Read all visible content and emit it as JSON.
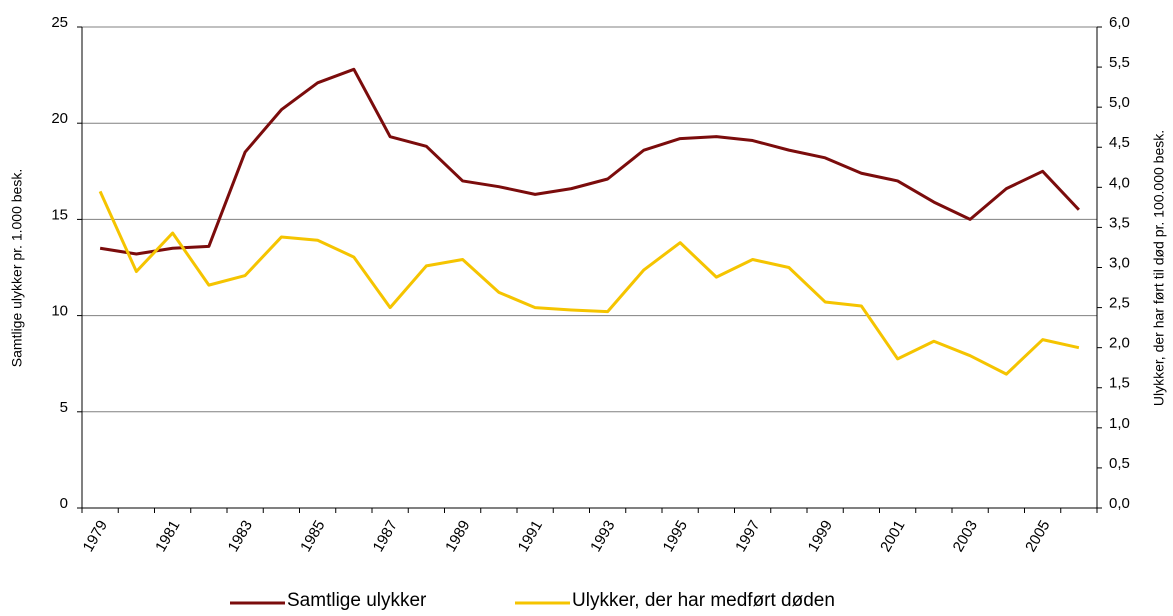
{
  "chart_data": {
    "type": "line",
    "y_label": "Samtlige ulykker pr. 1.000 besk.",
    "y2_label": "Ulykker, der har ført til død pr. 100.000 besk.",
    "categories": [
      "1979",
      null,
      "1981",
      null,
      "1983",
      null,
      "1985",
      null,
      "1987",
      null,
      "1989",
      null,
      "1991",
      null,
      "1993",
      null,
      "1995",
      null,
      "1997",
      null,
      "1999",
      null,
      "2001",
      null,
      "2003",
      null,
      "2005",
      null
    ],
    "series": [
      {
        "name": "Samtlige ulykker",
        "color": "#7b0c0c",
        "axis": "y",
        "values": [
          13.5,
          13.2,
          13.5,
          13.6,
          18.5,
          20.7,
          22.1,
          22.8,
          19.3,
          18.8,
          17.0,
          16.7,
          16.3,
          16.6,
          17.1,
          18.6,
          19.2,
          19.3,
          19.1,
          18.6,
          18.2,
          17.4,
          17.0,
          15.9,
          15.0,
          16.6,
          17.5,
          15.5
        ]
      },
      {
        "name": "Ulykker, der har medført døden",
        "color": "#f5c400",
        "axis": "y2",
        "values": [
          3.95,
          2.95,
          3.43,
          2.78,
          2.9,
          3.38,
          3.34,
          3.13,
          2.5,
          3.02,
          3.1,
          2.69,
          2.5,
          2.47,
          2.45,
          2.97,
          3.31,
          2.88,
          3.1,
          3.0,
          2.57,
          2.52,
          1.86,
          2.08,
          1.9,
          1.67,
          2.1,
          2.0
        ]
      }
    ],
    "ylim": [
      0,
      25
    ],
    "yticks": [
      0,
      5,
      10,
      15,
      20,
      25
    ],
    "y2lim": [
      0,
      6
    ],
    "y2ticks": [
      {
        "value": 0,
        "label": "0,0"
      },
      {
        "value": 0.5,
        "label": "0,5"
      },
      {
        "value": 1,
        "label": "1,0"
      },
      {
        "value": 1.5,
        "label": "1,5"
      },
      {
        "value": 2,
        "label": "2,0"
      },
      {
        "value": 2.5,
        "label": "2,5"
      },
      {
        "value": 3,
        "label": "3,0"
      },
      {
        "value": 3.5,
        "label": "3,5"
      },
      {
        "value": 4,
        "label": "4,0"
      },
      {
        "value": 4.5,
        "label": "4,5"
      },
      {
        "value": 5,
        "label": "5,0"
      },
      {
        "value": 5.5,
        "label": "5,5"
      },
      {
        "value": 6,
        "label": "6,0"
      }
    ],
    "grid": true,
    "legend": "bottom"
  }
}
